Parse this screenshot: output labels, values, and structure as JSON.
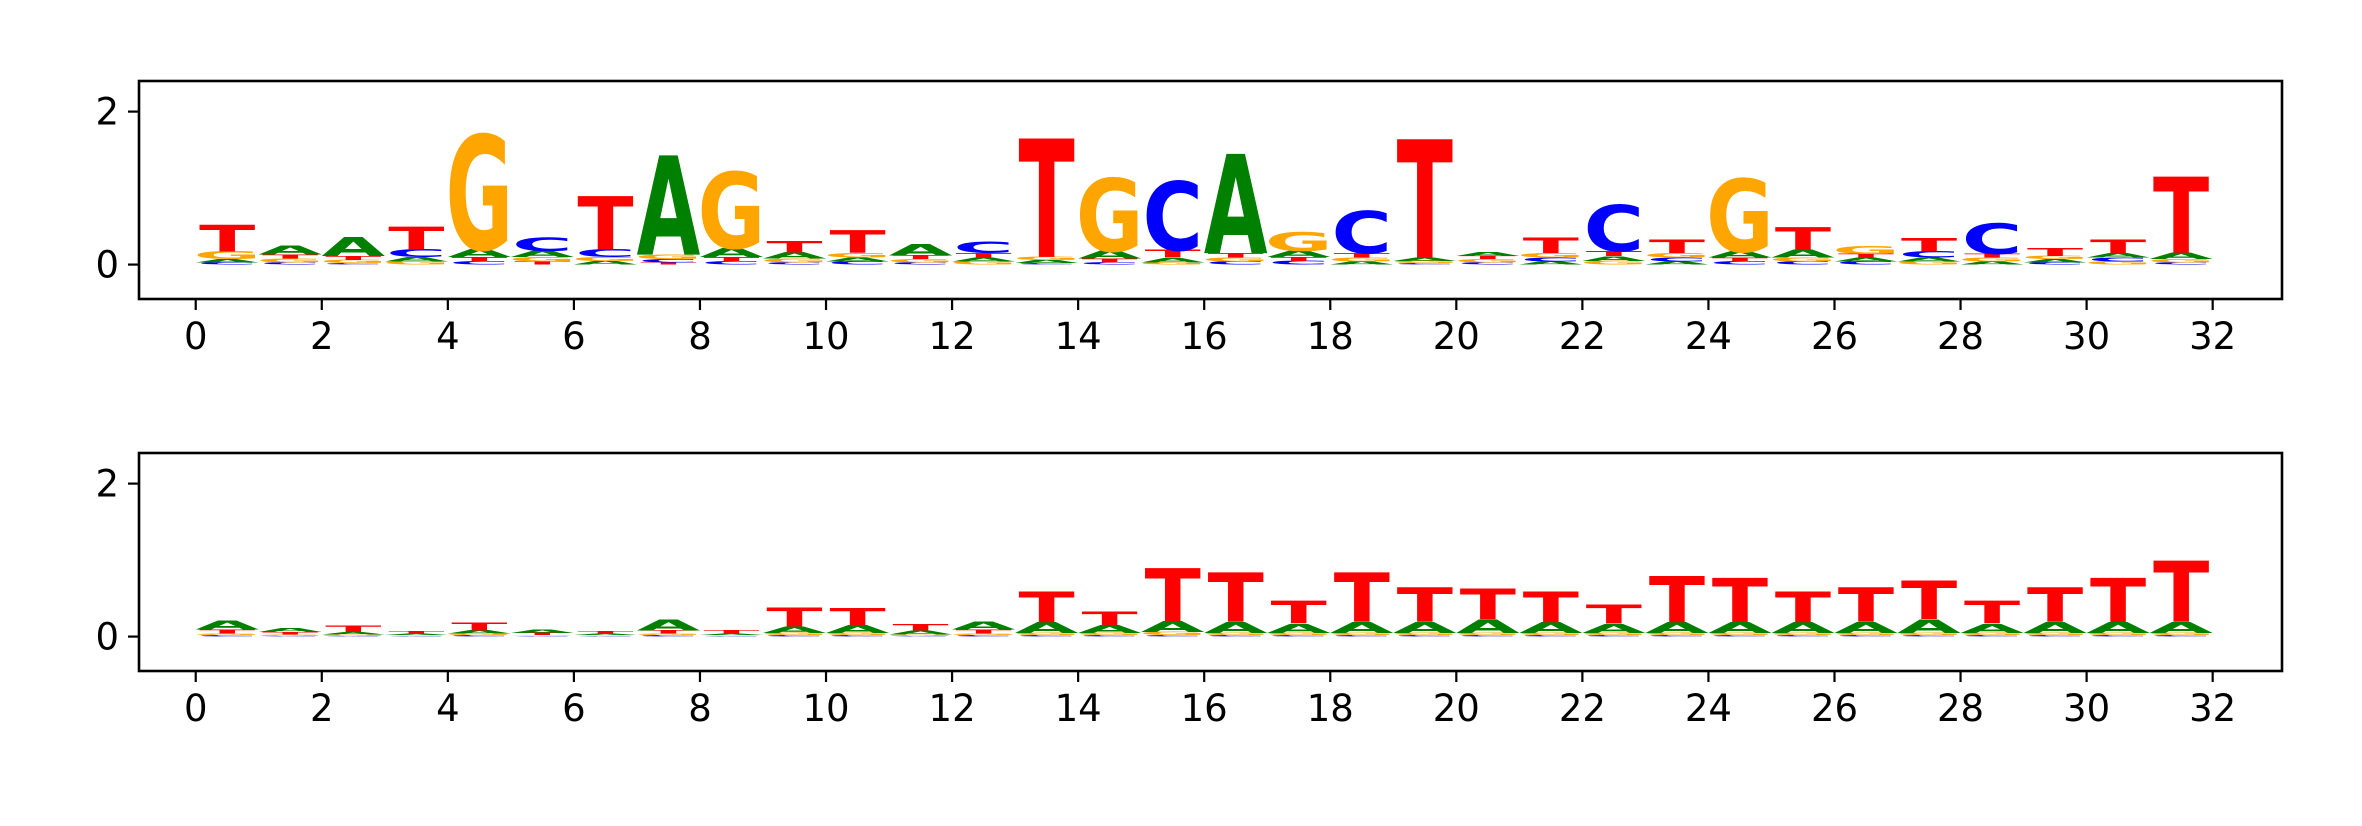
{
  "colors": {
    "A": "#008000",
    "C": "#0000ff",
    "G": "#ffa500",
    "T": "#ff0000"
  },
  "chart_data": [
    {
      "type": "sequence_logo",
      "title": "",
      "xlabel": "",
      "ylabel": "",
      "xlim": [
        -0.9,
        33.1
      ],
      "ylim": [
        -0.45,
        2.4
      ],
      "x_ticks": [
        "0",
        "2",
        "4",
        "6",
        "8",
        "10",
        "12",
        "14",
        "16",
        "18",
        "20",
        "22",
        "24",
        "26",
        "28",
        "30",
        "32"
      ],
      "y_ticks": [
        "0",
        "2"
      ],
      "positions": [
        {
          "pos": 0,
          "A": 0.04,
          "C": 0.03,
          "G": 0.1,
          "T": 0.35
        },
        {
          "pos": 1,
          "A": 0.12,
          "C": 0.03,
          "G": 0.05,
          "T": 0.05
        },
        {
          "pos": 2,
          "A": 0.25,
          "C": 0.02,
          "G": 0.04,
          "T": 0.05
        },
        {
          "pos": 3,
          "A": 0.06,
          "C": 0.1,
          "G": 0.04,
          "T": 0.3
        },
        {
          "pos": 4,
          "A": 0.1,
          "C": 0.04,
          "G": 1.5,
          "T": 0.06
        },
        {
          "pos": 5,
          "A": 0.08,
          "C": 0.18,
          "G": 0.06,
          "T": 0.04
        },
        {
          "pos": 6,
          "A": 0.05,
          "C": 0.1,
          "G": 0.05,
          "T": 0.7
        },
        {
          "pos": 7,
          "A": 1.3,
          "C": 0.04,
          "G": 0.06,
          "T": 0.03
        },
        {
          "pos": 8,
          "A": 0.12,
          "C": 0.04,
          "G": 1.0,
          "T": 0.06
        },
        {
          "pos": 9,
          "A": 0.08,
          "C": 0.03,
          "G": 0.05,
          "T": 0.15
        },
        {
          "pos": 10,
          "A": 0.05,
          "C": 0.04,
          "G": 0.06,
          "T": 0.3
        },
        {
          "pos": 11,
          "A": 0.15,
          "C": 0.03,
          "G": 0.04,
          "T": 0.05
        },
        {
          "pos": 12,
          "A": 0.05,
          "C": 0.15,
          "G": 0.04,
          "T": 0.06
        },
        {
          "pos": 13,
          "A": 0.04,
          "C": 0.02,
          "G": 0.04,
          "T": 1.55
        },
        {
          "pos": 14,
          "A": 0.1,
          "C": 0.03,
          "G": 0.95,
          "T": 0.05
        },
        {
          "pos": 15,
          "A": 0.06,
          "C": 0.9,
          "G": 0.03,
          "T": 0.1
        },
        {
          "pos": 16,
          "A": 1.3,
          "C": 0.04,
          "G": 0.05,
          "T": 0.06
        },
        {
          "pos": 17,
          "A": 0.08,
          "C": 0.05,
          "G": 0.25,
          "T": 0.05
        },
        {
          "pos": 18,
          "A": 0.04,
          "C": 0.55,
          "G": 0.05,
          "T": 0.06
        },
        {
          "pos": 19,
          "A": 0.04,
          "C": 0.02,
          "G": 0.03,
          "T": 1.55
        },
        {
          "pos": 20,
          "A": 0.05,
          "C": 0.03,
          "G": 0.04,
          "T": 0.04
        },
        {
          "pos": 21,
          "A": 0.04,
          "C": 0.05,
          "G": 0.06,
          "T": 0.2
        },
        {
          "pos": 22,
          "A": 0.06,
          "C": 0.6,
          "G": 0.05,
          "T": 0.07
        },
        {
          "pos": 23,
          "A": 0.04,
          "C": 0.05,
          "G": 0.06,
          "T": 0.18
        },
        {
          "pos": 24,
          "A": 0.08,
          "C": 0.04,
          "G": 0.95,
          "T": 0.05
        },
        {
          "pos": 25,
          "A": 0.1,
          "C": 0.04,
          "G": 0.05,
          "T": 0.3
        },
        {
          "pos": 26,
          "A": 0.05,
          "C": 0.04,
          "G": 0.1,
          "T": 0.05
        },
        {
          "pos": 27,
          "A": 0.05,
          "C": 0.08,
          "G": 0.04,
          "T": 0.18
        },
        {
          "pos": 28,
          "A": 0.04,
          "C": 0.4,
          "G": 0.05,
          "T": 0.05
        },
        {
          "pos": 29,
          "A": 0.04,
          "C": 0.03,
          "G": 0.04,
          "T": 0.1
        },
        {
          "pos": 30,
          "A": 0.06,
          "C": 0.05,
          "G": 0.04,
          "T": 0.18
        },
        {
          "pos": 31,
          "A": 0.08,
          "C": 0.03,
          "G": 0.04,
          "T": 1.0
        }
      ]
    },
    {
      "type": "sequence_logo",
      "title": "",
      "xlabel": "",
      "ylabel": "",
      "xlim": [
        -0.9,
        33.1
      ],
      "ylim": [
        -0.45,
        2.4
      ],
      "x_ticks": [
        "0",
        "2",
        "4",
        "6",
        "8",
        "10",
        "12",
        "14",
        "16",
        "18",
        "20",
        "22",
        "24",
        "26",
        "28",
        "30",
        "32"
      ],
      "y_ticks": [
        "0",
        "2"
      ],
      "positions": [
        {
          "pos": 0,
          "A": 0.12,
          "C": 0.02,
          "G": 0.02,
          "T": 0.05
        },
        {
          "pos": 1,
          "A": 0.05,
          "C": 0.01,
          "G": 0.02,
          "T": 0.03
        },
        {
          "pos": 2,
          "A": 0.03,
          "C": 0.01,
          "G": 0.02,
          "T": 0.08
        },
        {
          "pos": 3,
          "A": 0.02,
          "C": 0.01,
          "G": 0.01,
          "T": 0.03
        },
        {
          "pos": 4,
          "A": 0.04,
          "C": 0.02,
          "G": 0.02,
          "T": 0.1
        },
        {
          "pos": 5,
          "A": 0.04,
          "C": 0.01,
          "G": 0.01,
          "T": 0.03
        },
        {
          "pos": 6,
          "A": 0.02,
          "C": 0.01,
          "G": 0.01,
          "T": 0.03
        },
        {
          "pos": 7,
          "A": 0.14,
          "C": 0.02,
          "G": 0.02,
          "T": 0.04
        },
        {
          "pos": 8,
          "A": 0.02,
          "C": 0.01,
          "G": 0.01,
          "T": 0.04
        },
        {
          "pos": 9,
          "A": 0.08,
          "C": 0.02,
          "G": 0.03,
          "T": 0.25
        },
        {
          "pos": 10,
          "A": 0.1,
          "C": 0.02,
          "G": 0.03,
          "T": 0.22
        },
        {
          "pos": 11,
          "A": 0.05,
          "C": 0.01,
          "G": 0.02,
          "T": 0.08
        },
        {
          "pos": 12,
          "A": 0.1,
          "C": 0.02,
          "G": 0.02,
          "T": 0.05
        },
        {
          "pos": 13,
          "A": 0.14,
          "C": 0.02,
          "G": 0.03,
          "T": 0.4
        },
        {
          "pos": 14,
          "A": 0.1,
          "C": 0.02,
          "G": 0.03,
          "T": 0.18
        },
        {
          "pos": 15,
          "A": 0.14,
          "C": 0.02,
          "G": 0.04,
          "T": 0.7
        },
        {
          "pos": 16,
          "A": 0.14,
          "C": 0.02,
          "G": 0.03,
          "T": 0.65
        },
        {
          "pos": 17,
          "A": 0.12,
          "C": 0.02,
          "G": 0.03,
          "T": 0.3
        },
        {
          "pos": 18,
          "A": 0.14,
          "C": 0.02,
          "G": 0.03,
          "T": 0.65
        },
        {
          "pos": 19,
          "A": 0.14,
          "C": 0.02,
          "G": 0.03,
          "T": 0.45
        },
        {
          "pos": 20,
          "A": 0.18,
          "C": 0.02,
          "G": 0.03,
          "T": 0.4
        },
        {
          "pos": 21,
          "A": 0.14,
          "C": 0.02,
          "G": 0.03,
          "T": 0.4
        },
        {
          "pos": 22,
          "A": 0.12,
          "C": 0.02,
          "G": 0.03,
          "T": 0.25
        },
        {
          "pos": 23,
          "A": 0.14,
          "C": 0.02,
          "G": 0.03,
          "T": 0.6
        },
        {
          "pos": 24,
          "A": 0.14,
          "C": 0.02,
          "G": 0.03,
          "T": 0.58
        },
        {
          "pos": 25,
          "A": 0.14,
          "C": 0.02,
          "G": 0.03,
          "T": 0.4
        },
        {
          "pos": 26,
          "A": 0.14,
          "C": 0.02,
          "G": 0.03,
          "T": 0.45
        },
        {
          "pos": 27,
          "A": 0.18,
          "C": 0.02,
          "G": 0.03,
          "T": 0.5
        },
        {
          "pos": 28,
          "A": 0.12,
          "C": 0.02,
          "G": 0.03,
          "T": 0.3
        },
        {
          "pos": 29,
          "A": 0.14,
          "C": 0.02,
          "G": 0.03,
          "T": 0.45
        },
        {
          "pos": 30,
          "A": 0.14,
          "C": 0.02,
          "G": 0.03,
          "T": 0.58
        },
        {
          "pos": 31,
          "A": 0.14,
          "C": 0.02,
          "G": 0.03,
          "T": 0.8
        }
      ]
    }
  ]
}
